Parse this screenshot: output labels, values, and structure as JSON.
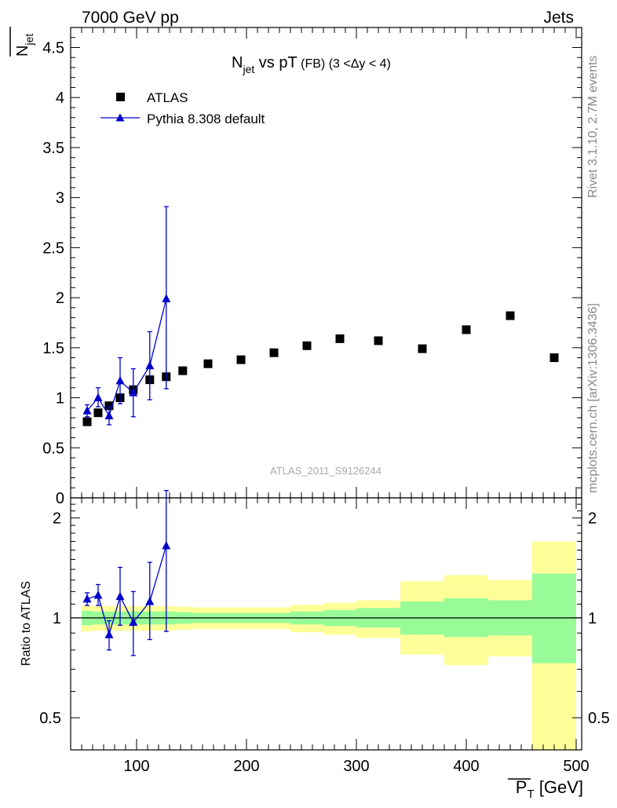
{
  "header": {
    "left": "7000 GeV pp",
    "right": "Jets"
  },
  "side_labels": {
    "rivet": "Rivet 3.1.10,  2.7M events",
    "mcplots": "mcplots.cern.ch [arXiv:1306.3436]"
  },
  "watermark": "ATLAS_2011_S9126244",
  "colors": {
    "data": "#000000",
    "mc": "#0000cc",
    "band_inner": "#98fb98",
    "band_outer": "#ffff99"
  },
  "chart_data": [
    {
      "type": "scatter",
      "title": {
        "main": "N",
        "main_sub": "jet",
        "mid": " vs pT",
        "small": " (FB)",
        "range": " (3 <Δy < 4)"
      },
      "ylabel": {
        "main": "N",
        "sub": "jet"
      },
      "xlim": [
        40,
        505
      ],
      "ylim": [
        0,
        4.7
      ],
      "yticks": [
        0,
        0.5,
        1,
        1.5,
        2,
        2.5,
        3,
        3.5,
        4,
        4.5
      ],
      "ytick_labels": [
        "0",
        "0.5",
        "1",
        "1.5",
        "2",
        "2.5",
        "3",
        "3.5",
        "4",
        "4.5"
      ],
      "legend_position": "top-left",
      "series": [
        {
          "name": "ATLAS",
          "marker": "square",
          "x": [
            55,
            65,
            75,
            85,
            97,
            112,
            127,
            142,
            165,
            195,
            225,
            255,
            285,
            320,
            360,
            400,
            440,
            480
          ],
          "y": [
            0.76,
            0.85,
            0.92,
            1.0,
            1.08,
            1.18,
            1.21,
            1.27,
            1.34,
            1.38,
            1.45,
            1.52,
            1.59,
            1.57,
            1.49,
            1.68,
            1.82,
            1.4
          ]
        },
        {
          "name": "Pythia 8.308 default",
          "marker": "triangle",
          "x": [
            55,
            65,
            75,
            85,
            97,
            112,
            127
          ],
          "y": [
            0.87,
            1.0,
            0.82,
            1.17,
            1.05,
            1.32,
            1.99
          ],
          "err_low": [
            0.06,
            0.09,
            0.09,
            0.23,
            0.24,
            0.34,
            0.9
          ],
          "err_high": [
            0.06,
            0.1,
            0.09,
            0.23,
            0.24,
            0.34,
            0.92
          ]
        }
      ]
    },
    {
      "type": "scatter",
      "ylabel": "Ratio to ATLAS",
      "xlabel": {
        "main": "P",
        "sub": "T",
        "unit": " [GeV]"
      },
      "xlim": [
        40,
        505
      ],
      "ylim": [
        0.4,
        2.3
      ],
      "log_y": true,
      "xticks": [
        100,
        200,
        300,
        400,
        500
      ],
      "xtick_labels": [
        "100",
        "200",
        "300",
        "400",
        "500"
      ],
      "yticks": [
        0.5,
        1,
        2
      ],
      "ytick_labels": [
        "0.5",
        "1",
        "2"
      ],
      "bands": [
        {
          "xlo": 50,
          "xhi": 60,
          "inner": [
            0.95,
            1.05
          ],
          "outer": [
            0.91,
            1.09
          ]
        },
        {
          "xlo": 60,
          "xhi": 70,
          "inner": [
            0.955,
            1.045
          ],
          "outer": [
            0.915,
            1.085
          ]
        },
        {
          "xlo": 70,
          "xhi": 80,
          "inner": [
            0.955,
            1.045
          ],
          "outer": [
            0.915,
            1.085
          ]
        },
        {
          "xlo": 80,
          "xhi": 90,
          "inner": [
            0.955,
            1.045
          ],
          "outer": [
            0.915,
            1.085
          ]
        },
        {
          "xlo": 90,
          "xhi": 105,
          "inner": [
            0.955,
            1.045
          ],
          "outer": [
            0.915,
            1.085
          ]
        },
        {
          "xlo": 105,
          "xhi": 120,
          "inner": [
            0.955,
            1.045
          ],
          "outer": [
            0.915,
            1.085
          ]
        },
        {
          "xlo": 120,
          "xhi": 135,
          "inner": [
            0.955,
            1.045
          ],
          "outer": [
            0.915,
            1.085
          ]
        },
        {
          "xlo": 135,
          "xhi": 150,
          "inner": [
            0.96,
            1.04
          ],
          "outer": [
            0.92,
            1.08
          ]
        },
        {
          "xlo": 150,
          "xhi": 180,
          "inner": [
            0.965,
            1.035
          ],
          "outer": [
            0.925,
            1.075
          ]
        },
        {
          "xlo": 180,
          "xhi": 210,
          "inner": [
            0.965,
            1.035
          ],
          "outer": [
            0.925,
            1.075
          ]
        },
        {
          "xlo": 210,
          "xhi": 240,
          "inner": [
            0.965,
            1.035
          ],
          "outer": [
            0.925,
            1.075
          ]
        },
        {
          "xlo": 240,
          "xhi": 270,
          "inner": [
            0.955,
            1.045
          ],
          "outer": [
            0.905,
            1.095
          ]
        },
        {
          "xlo": 270,
          "xhi": 300,
          "inner": [
            0.945,
            1.055
          ],
          "outer": [
            0.89,
            1.11
          ]
        },
        {
          "xlo": 300,
          "xhi": 340,
          "inner": [
            0.935,
            1.07
          ],
          "outer": [
            0.87,
            1.13
          ]
        },
        {
          "xlo": 340,
          "xhi": 380,
          "inner": [
            0.89,
            1.12
          ],
          "outer": [
            0.775,
            1.29
          ]
        },
        {
          "xlo": 380,
          "xhi": 420,
          "inner": [
            0.875,
            1.145
          ],
          "outer": [
            0.72,
            1.345
          ]
        },
        {
          "xlo": 420,
          "xhi": 460,
          "inner": [
            0.885,
            1.13
          ],
          "outer": [
            0.765,
            1.3
          ]
        },
        {
          "xlo": 460,
          "xhi": 500,
          "inner": [
            0.73,
            1.36
          ],
          "outer": [
            0.3,
            1.7
          ]
        }
      ],
      "series": [
        {
          "name": "Pythia 8.308 default",
          "marker": "triangle",
          "x": [
            55,
            65,
            75,
            85,
            97,
            112,
            127
          ],
          "y": [
            1.14,
            1.17,
            0.89,
            1.16,
            0.97,
            1.12,
            1.65
          ],
          "err_low": [
            0.05,
            0.08,
            0.09,
            0.21,
            0.2,
            0.26,
            0.74
          ],
          "err_high": [
            0.05,
            0.09,
            0.09,
            0.26,
            0.23,
            0.35,
            0.77
          ]
        }
      ]
    }
  ]
}
